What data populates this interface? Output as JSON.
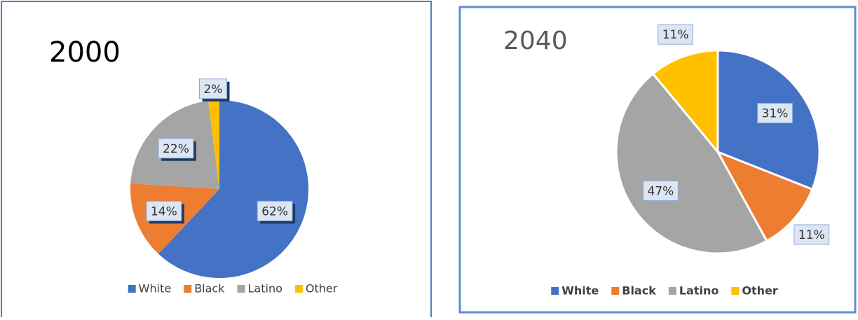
{
  "chart_data": [
    {
      "type": "pie",
      "title": "2000",
      "categories": [
        "White",
        "Black",
        "Latino",
        "Other"
      ],
      "values": [
        62,
        14,
        22,
        2
      ],
      "value_labels": [
        "62%",
        "14%",
        "22%",
        "2%"
      ],
      "colors": [
        "#4472c4",
        "#ed7d31",
        "#a5a5a5",
        "#ffc000"
      ],
      "legend": "bottom"
    },
    {
      "type": "pie",
      "title": "2040",
      "categories": [
        "White",
        "Black",
        "Latino",
        "Other"
      ],
      "values": [
        31,
        11,
        47,
        11
      ],
      "value_labels": [
        "31%",
        "11%",
        "47%",
        "11%"
      ],
      "colors": [
        "#4472c4",
        "#ed7d31",
        "#a5a5a5",
        "#ffc000"
      ],
      "legend": "bottom"
    }
  ]
}
